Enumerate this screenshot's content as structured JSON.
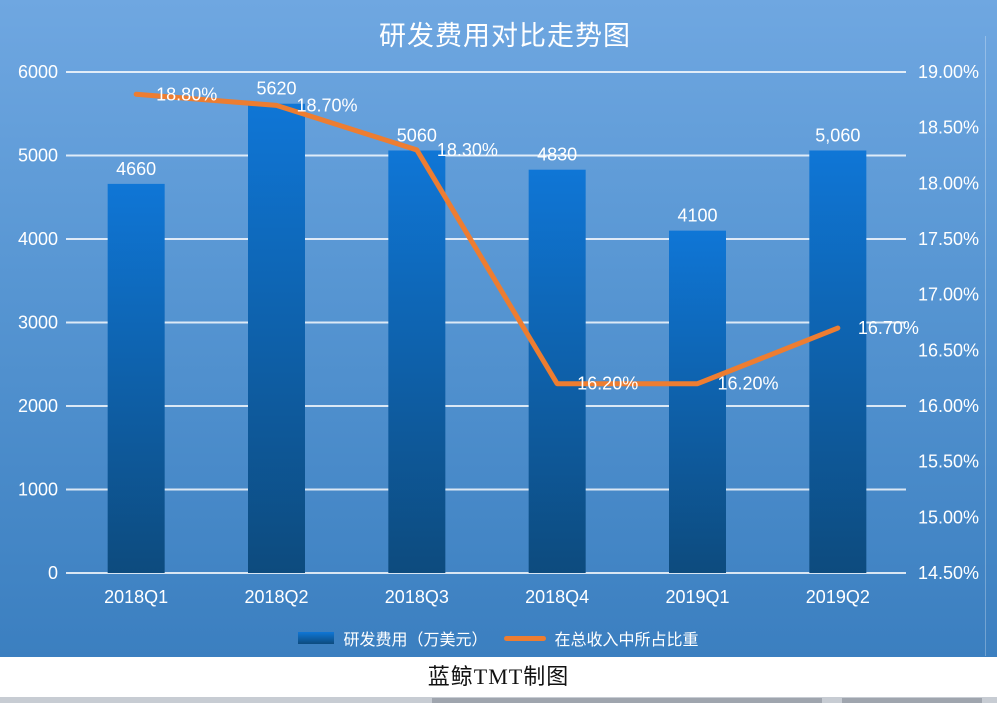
{
  "page": {
    "footer_credit": "蓝鲸TMT制图",
    "ruler_origin_label": "0"
  },
  "chart_data": {
    "type": "bar+line combo",
    "title": "研发费用对比走势图",
    "categories": [
      "2018Q1",
      "2018Q2",
      "2018Q3",
      "2018Q4",
      "2019Q1",
      "2019Q2"
    ],
    "series": [
      {
        "name": "研发费用（万美元）",
        "type": "bar",
        "axis": "left",
        "values": [
          4660,
          5620,
          5060,
          4830,
          4100,
          5060
        ],
        "labels": [
          "4660",
          "5620",
          "5060",
          "4830",
          "4100",
          "5,060"
        ],
        "color_top": "#0f76d6",
        "color_bottom": "#0d4b7e"
      },
      {
        "name": "在总收入中所占比重",
        "type": "line",
        "axis": "right",
        "values": [
          18.8,
          18.7,
          18.3,
          16.2,
          16.2,
          16.7
        ],
        "labels": [
          "18.80%",
          "18.70%",
          "18.30%",
          "16.20%",
          "16.20%",
          "16.70%"
        ],
        "color": "#ed7d31"
      }
    ],
    "left_axis": {
      "min": 0,
      "max": 6000,
      "ticks_top_to_bottom": [
        "6000",
        "5000",
        "4000",
        "3000",
        "2000",
        "1000",
        "0"
      ]
    },
    "right_axis": {
      "min": 14.5,
      "max": 19.0,
      "ticks_top_to_bottom": [
        "19.00%",
        "18.50%",
        "18.00%",
        "17.50%",
        "17.00%",
        "16.50%",
        "16.00%",
        "15.50%",
        "15.00%",
        "14.50%"
      ]
    },
    "grid": true,
    "legend_position": "bottom",
    "background": {
      "top": "#6fa7e1",
      "bottom": "#3b7fc0"
    },
    "text_color": "#ffffff",
    "gridline_color": "rgba(255,255,255,0.8)"
  }
}
